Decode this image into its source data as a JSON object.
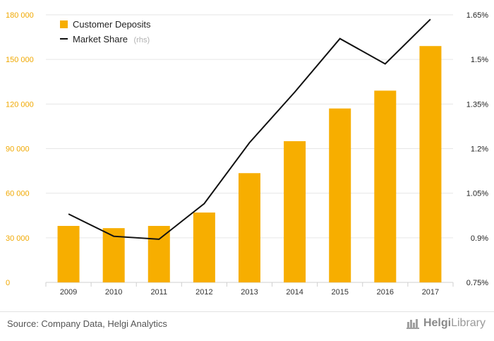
{
  "chart_data": {
    "type": "bar",
    "categories": [
      "2009",
      "2010",
      "2011",
      "2012",
      "2013",
      "2014",
      "2015",
      "2016",
      "2017"
    ],
    "series": [
      {
        "name": "Customer Deposits",
        "type": "bar",
        "axis": "left",
        "color": "#f7ae00",
        "values": [
          38000,
          36500,
          38000,
          47000,
          73500,
          95000,
          117000,
          129000,
          159000
        ]
      },
      {
        "name": "Market Share",
        "legend_suffix": "(rhs)",
        "type": "line",
        "axis": "right",
        "color": "#111111",
        "values": [
          0.98,
          0.905,
          0.895,
          1.015,
          1.22,
          1.39,
          1.57,
          1.485,
          1.635
        ]
      }
    ],
    "y_left": {
      "ylim": [
        0,
        180000
      ],
      "ticks": [
        0,
        30000,
        60000,
        90000,
        120000,
        150000,
        180000
      ],
      "tick_labels": [
        "0",
        "30 000",
        "60 000",
        "90 000",
        "120 000",
        "150 000",
        "180 000"
      ]
    },
    "y_right": {
      "ylim": [
        0.75,
        1.65
      ],
      "ticks": [
        0.75,
        0.9,
        1.05,
        1.2,
        1.35,
        1.5,
        1.65
      ],
      "tick_labels": [
        "0.75%",
        "0.9%",
        "1.05%",
        "1.2%",
        "1.35%",
        "1.5%",
        "1.65%"
      ]
    },
    "grid": true,
    "legend_position": "top-left"
  },
  "footer": {
    "source": "Source: Company Data, Helgi Analytics",
    "logo_prefix": "Helgi",
    "logo_suffix": "Library"
  }
}
